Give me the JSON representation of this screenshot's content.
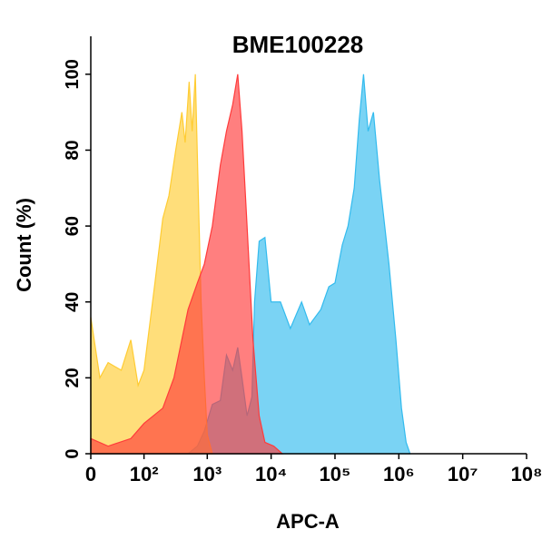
{
  "chart_data": {
    "type": "area",
    "title": "BME100228",
    "x_label": "APC-A",
    "y_label": "Count  (%)",
    "xscale": "biexponential",
    "xlim": [
      0,
      100000000
    ],
    "xticks": [
      0,
      {
        "value": 100,
        "label": "10²"
      },
      {
        "value": 1000,
        "label": "10³"
      },
      {
        "value": 10000,
        "label": "10⁴"
      },
      {
        "value": 100000,
        "label": "10⁵"
      },
      {
        "value": 1000000,
        "label": "10⁶"
      },
      {
        "value": 10000000,
        "label": "10⁷"
      },
      {
        "value": 100000000,
        "label": "10⁸"
      }
    ],
    "ylim": [
      0,
      110
    ],
    "yticks": [
      0,
      20,
      40,
      60,
      80,
      100
    ],
    "series": [
      {
        "color": "#33bbee",
        "x": [
          0,
          500,
          700,
          900,
          1200,
          1600,
          2000,
          2500,
          3000,
          3500,
          4200,
          5000,
          5500,
          6500,
          8000,
          10000,
          14000,
          20000,
          30000,
          40000,
          60000,
          80000,
          100000,
          130000,
          160000,
          200000,
          240000,
          280000,
          330000,
          400000,
          500000,
          700000,
          900000,
          1100000,
          1300000,
          1500000
        ],
        "values": [
          0,
          0,
          2,
          6,
          13,
          14,
          26,
          22,
          28,
          20,
          10,
          15,
          40,
          56,
          57,
          40,
          40,
          33,
          40,
          34,
          38,
          44,
          45,
          55,
          60,
          70,
          88,
          100,
          85,
          90,
          72,
          50,
          30,
          12,
          3,
          0
        ]
      },
      {
        "color": "#ffcc33",
        "x": [
          0,
          10,
          20,
          40,
          60,
          80,
          100,
          150,
          200,
          250,
          320,
          400,
          450,
          520,
          580,
          650,
          720,
          800,
          900,
          1000,
          1200
        ],
        "values": [
          36,
          20,
          24,
          22,
          30,
          18,
          22,
          45,
          62,
          68,
          80,
          90,
          82,
          98,
          85,
          100,
          70,
          40,
          20,
          5,
          0
        ]
      },
      {
        "color": "#ff3b3b",
        "x": [
          0,
          20,
          60,
          100,
          200,
          300,
          500,
          700,
          900,
          1200,
          1600,
          2000,
          2500,
          3000,
          3500,
          4200,
          5200,
          6500,
          8000,
          11000,
          15000
        ],
        "values": [
          4,
          2,
          4,
          8,
          12,
          20,
          38,
          45,
          50,
          60,
          76,
          85,
          92,
          100,
          85,
          60,
          30,
          10,
          3,
          2,
          0
        ]
      }
    ]
  }
}
